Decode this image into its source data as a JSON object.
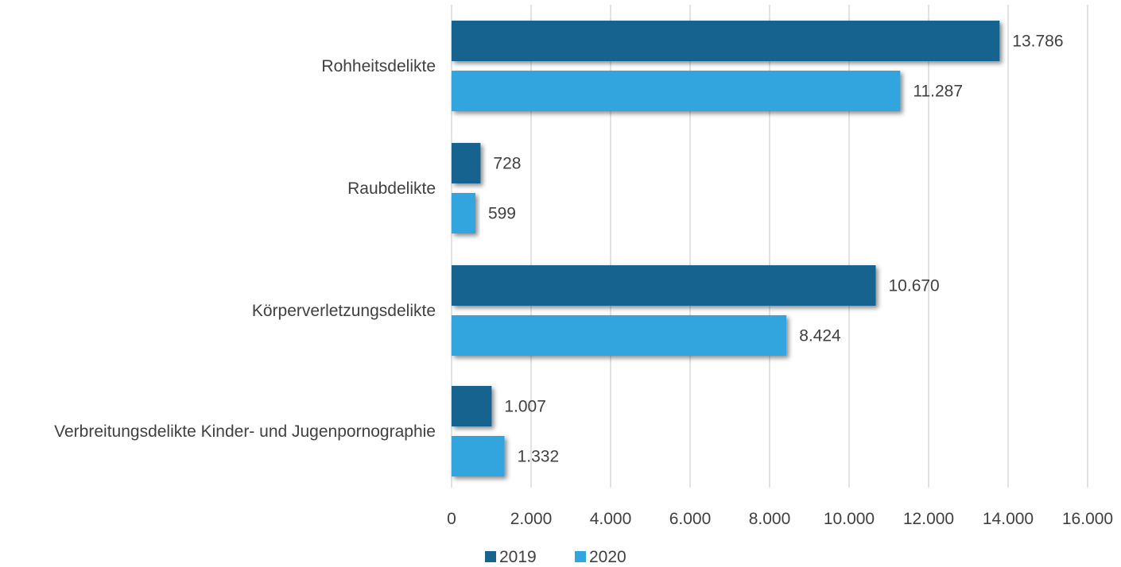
{
  "chart_data": {
    "type": "bar",
    "orientation": "horizontal",
    "categories": [
      "Rohheitsdelikte",
      "Raubdelikte",
      "Körperverletzungsdelikte",
      "Verbreitungsdelikte Kinder- und Jugenpornographie"
    ],
    "series": [
      {
        "name": "2019",
        "color": "#17648f",
        "values": [
          13786,
          728,
          10670,
          1007
        ],
        "labels": [
          "13.786",
          "728",
          "10.670",
          "1.007"
        ]
      },
      {
        "name": "2020",
        "color": "#31a5de",
        "values": [
          11287,
          599,
          8424,
          1332
        ],
        "labels": [
          "11.287",
          "599",
          "8.424",
          "1.332"
        ]
      }
    ],
    "xlim": [
      0,
      16000
    ],
    "xticks": [
      0,
      2000,
      4000,
      6000,
      8000,
      10000,
      12000,
      14000,
      16000
    ],
    "xtick_labels": [
      "0",
      "2.000",
      "4.000",
      "6.000",
      "8.000",
      "10.000",
      "12.000",
      "14.000",
      "16.000"
    ],
    "grid": true,
    "legend_position": "bottom"
  }
}
